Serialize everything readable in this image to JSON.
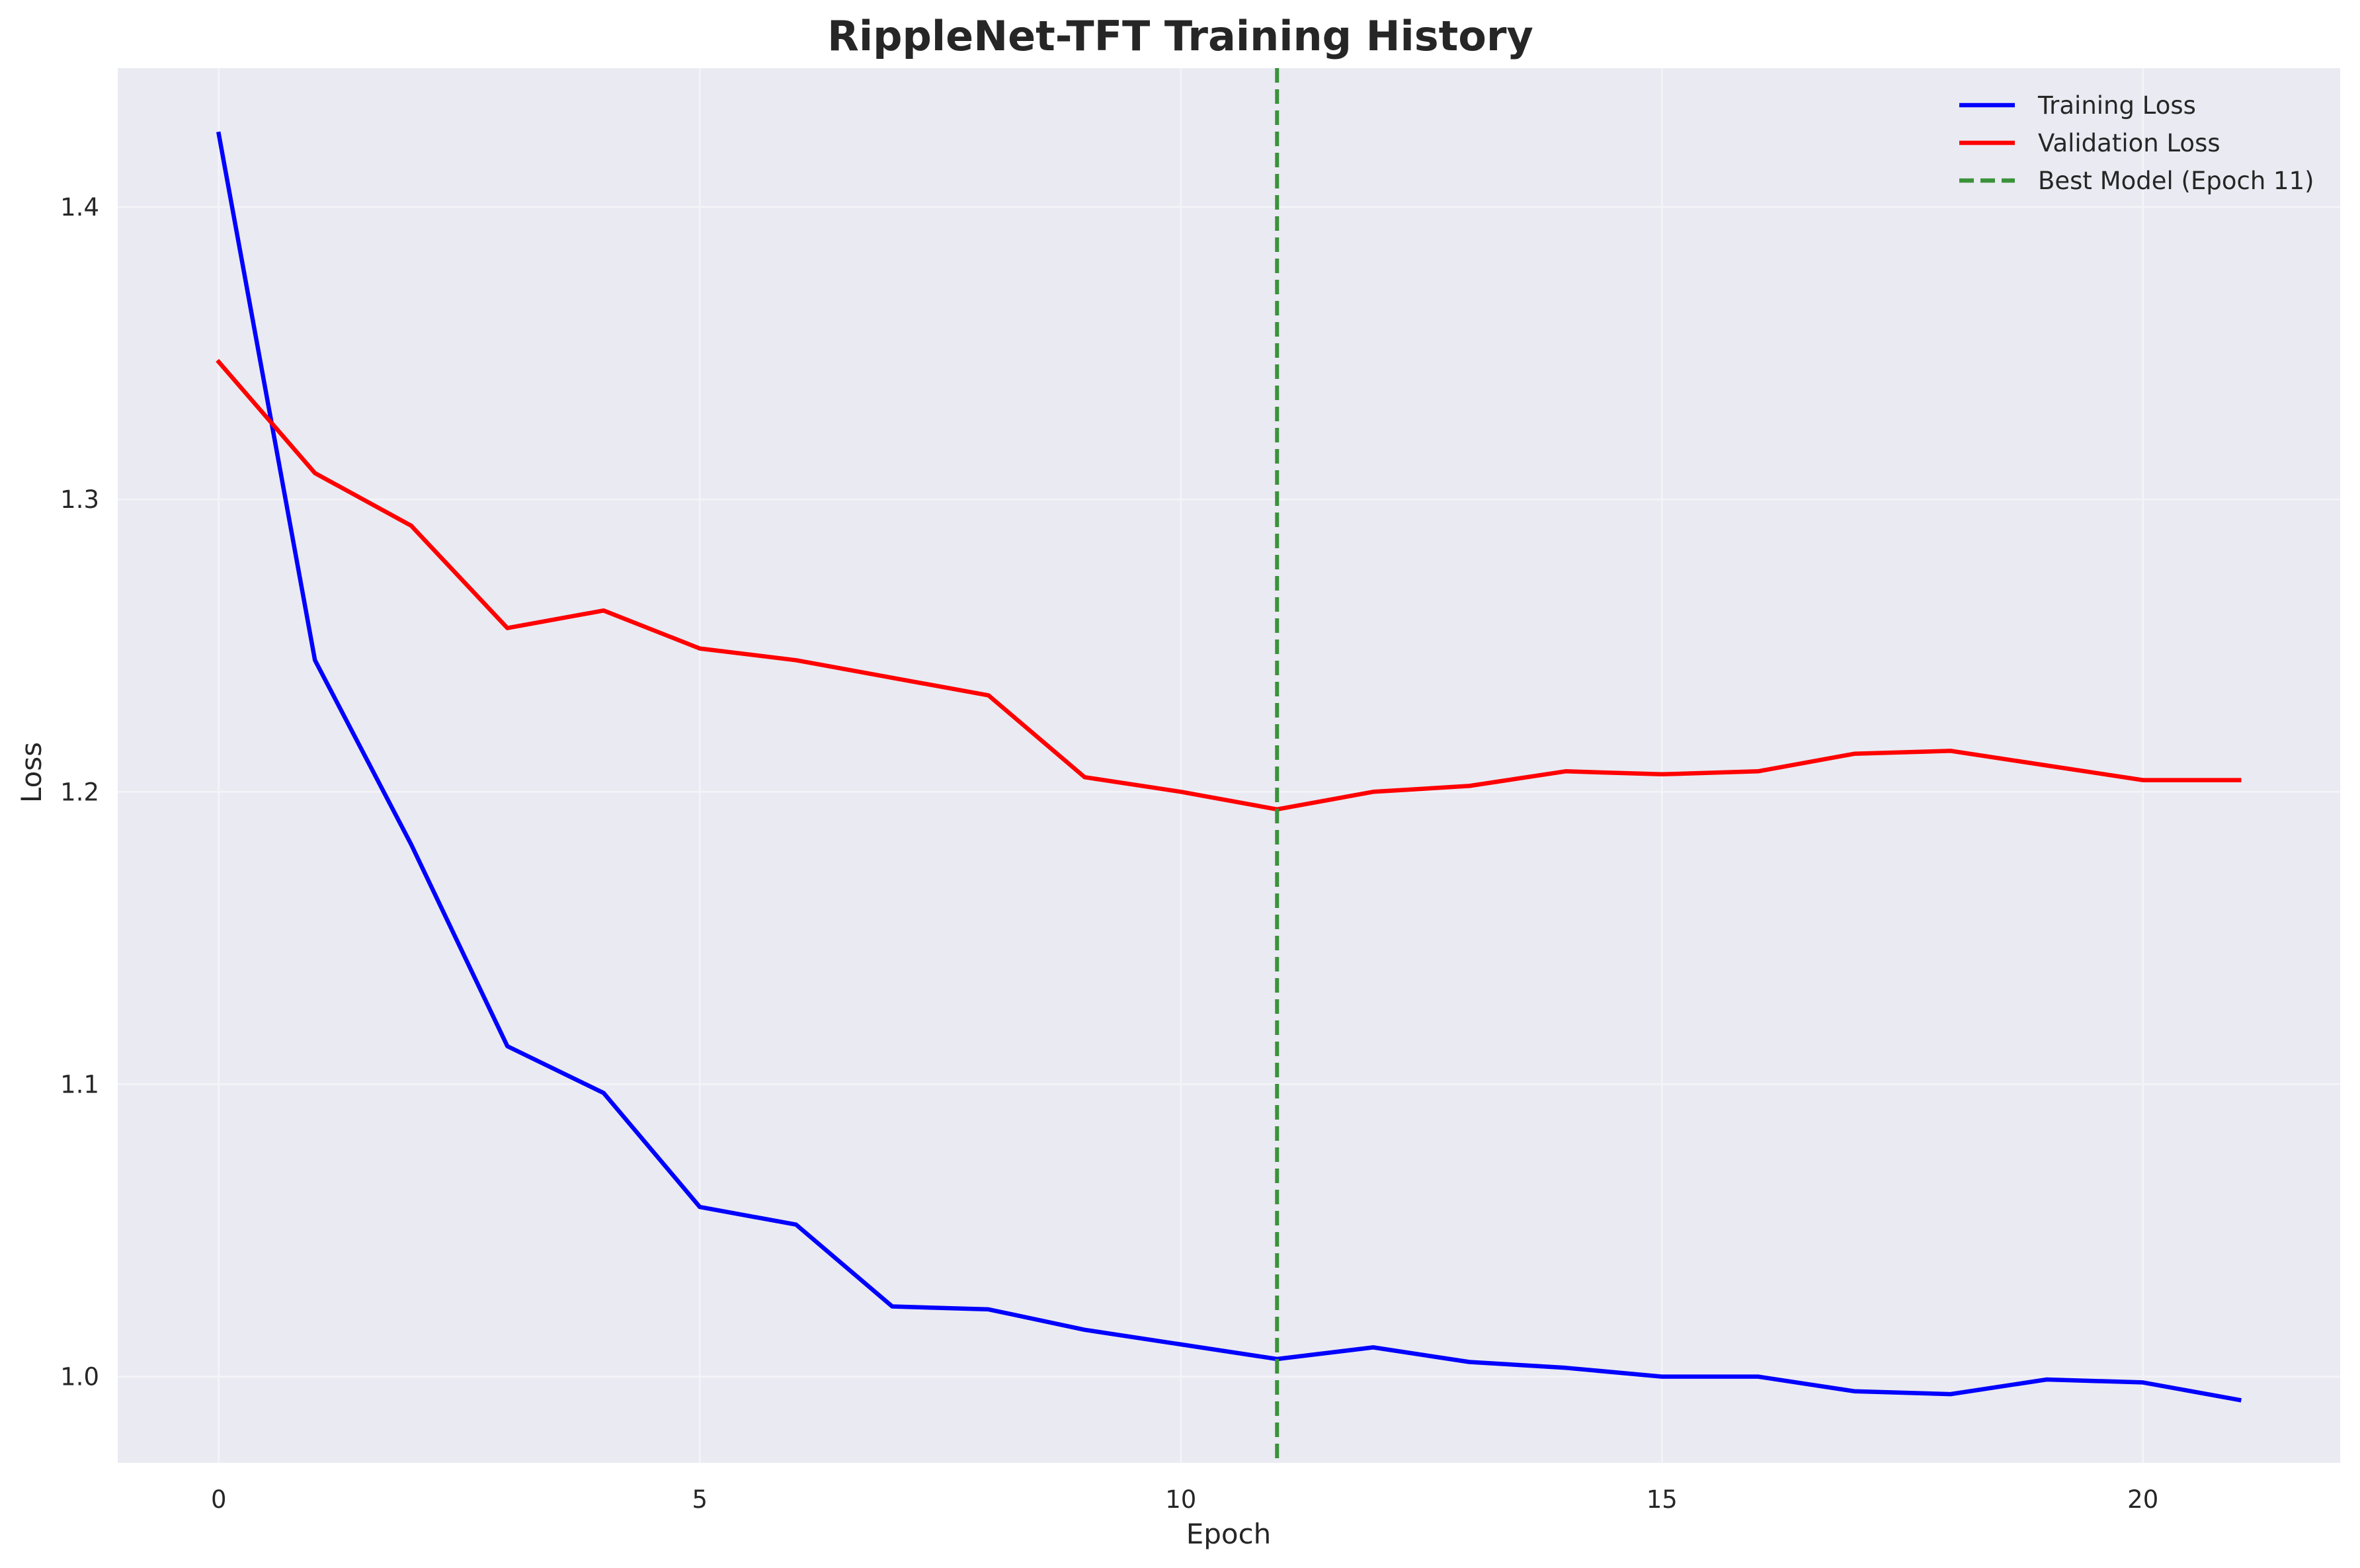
{
  "chart_data": {
    "type": "line",
    "title": "RippleNet-TFT Training History",
    "xlabel": "Epoch",
    "ylabel": "Loss",
    "xlim": [
      -1.05,
      22.05
    ],
    "ylim": [
      0.9705,
      1.4475
    ],
    "x_ticks": [
      0,
      5,
      10,
      15,
      20
    ],
    "y_ticks": [
      1.0,
      1.1,
      1.2,
      1.3,
      1.4
    ],
    "x_tick_labels": [
      "0",
      "5",
      "10",
      "15",
      "20"
    ],
    "y_tick_labels": [
      "1.0",
      "1.1",
      "1.2",
      "1.3",
      "1.4"
    ],
    "grid": true,
    "legend_position": "upper right",
    "background_color": "#eaeaf2",
    "x": [
      0,
      1,
      2,
      3,
      4,
      5,
      6,
      7,
      8,
      9,
      10,
      11,
      12,
      13,
      14,
      15,
      16,
      17,
      18,
      19,
      20,
      21
    ],
    "series": [
      {
        "name": "Training Loss",
        "color": "#0000ff",
        "values": [
          1.425,
          1.245,
          1.182,
          1.113,
          1.097,
          1.058,
          1.052,
          1.024,
          1.023,
          1.016,
          1.011,
          1.006,
          1.01,
          1.005,
          1.003,
          1.0,
          1.0,
          0.995,
          0.994,
          0.999,
          0.998,
          0.992
        ]
      },
      {
        "name": "Validation Loss",
        "color": "#ff0000",
        "values": [
          1.347,
          1.309,
          1.291,
          1.256,
          1.262,
          1.249,
          1.245,
          1.239,
          1.233,
          1.205,
          1.2,
          1.194,
          1.2,
          1.202,
          1.207,
          1.206,
          1.207,
          1.213,
          1.214,
          1.209,
          1.204,
          1.204
        ]
      }
    ],
    "vlines": [
      {
        "name": "Best Model (Epoch 11)",
        "x": 11,
        "color": "#3a923a",
        "style": "dashed"
      }
    ]
  }
}
